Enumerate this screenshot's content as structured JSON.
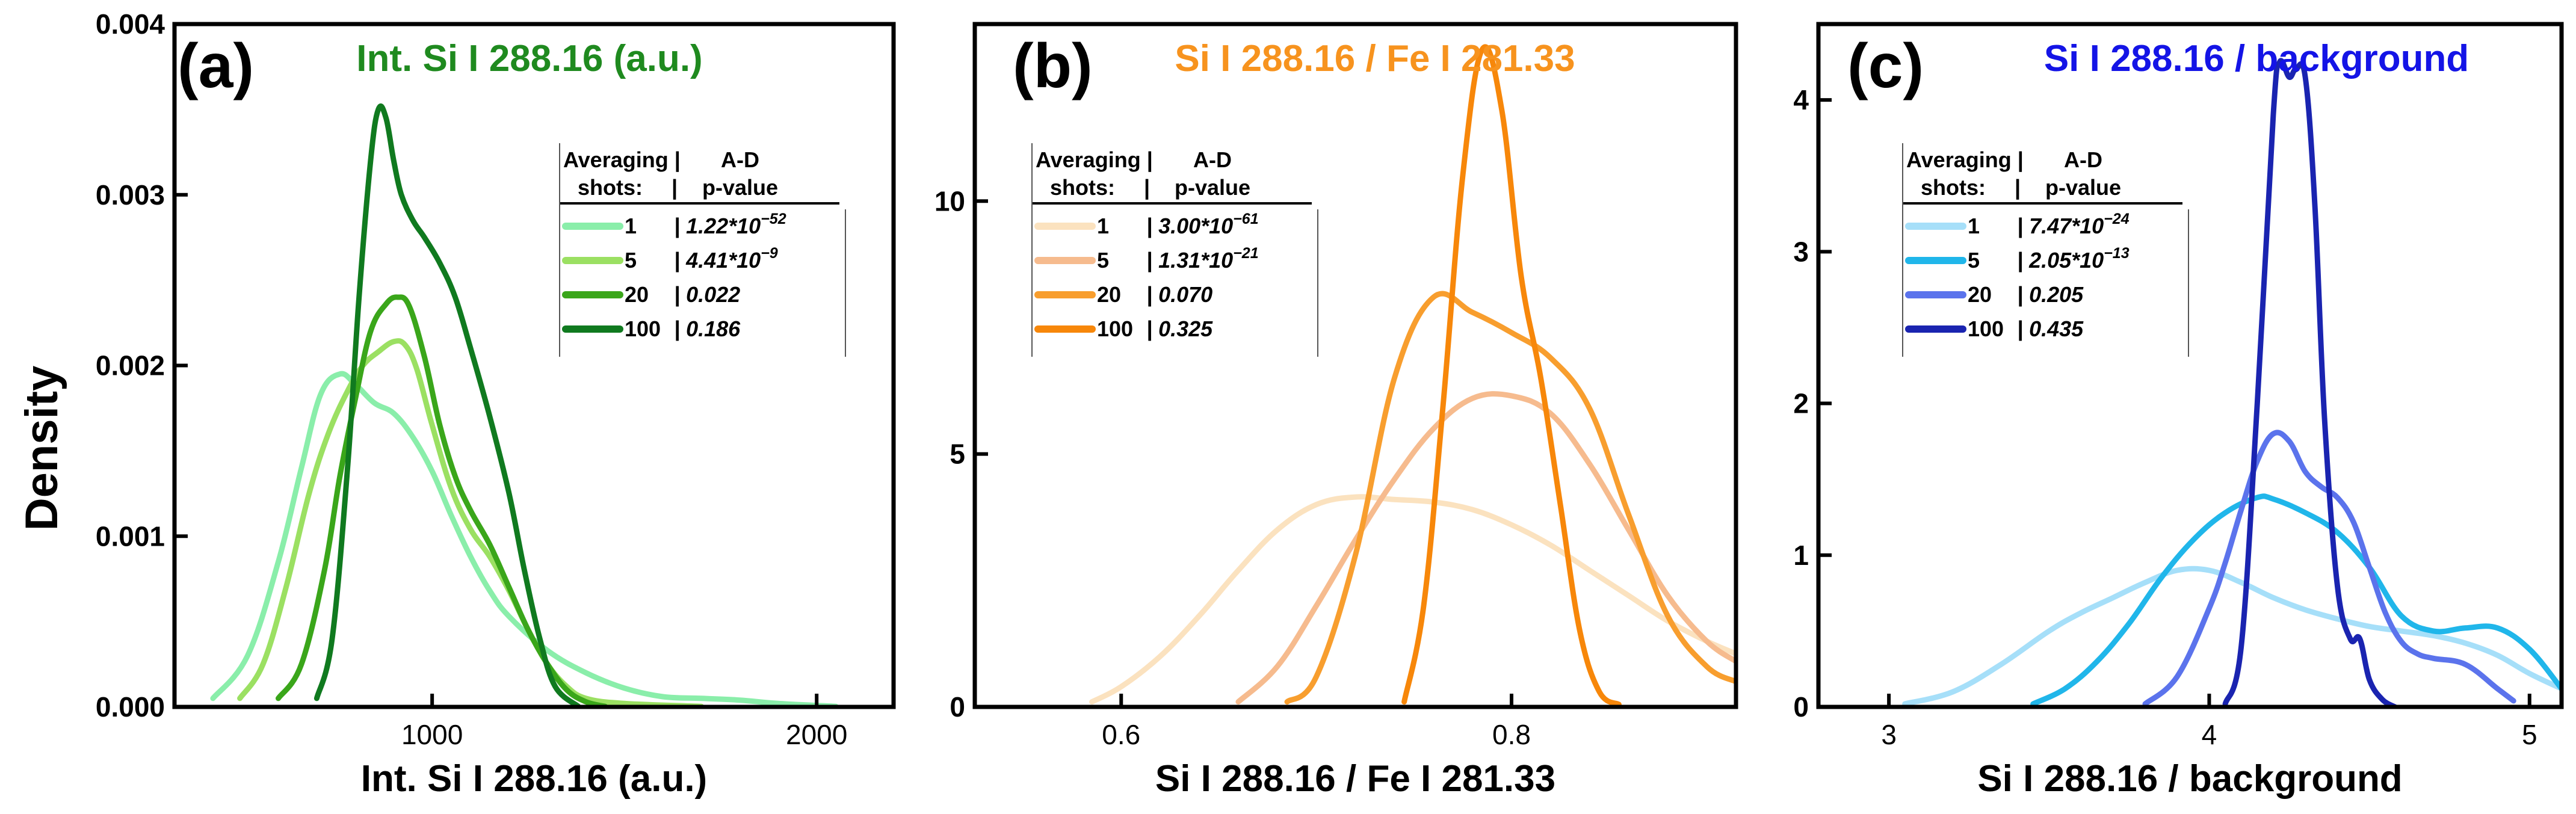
{
  "figure": {
    "ylabel": "Density"
  },
  "legend_header": {
    "line1_left": "Averaging",
    "line1_right": "A-D",
    "line2_left": "shots:",
    "line2_right": "p-value",
    "sep": "|"
  },
  "colors": {
    "a": [
      "#8aeeaa",
      "#9be062",
      "#3aa61a",
      "#107a1f"
    ],
    "b": [
      "#fbe2bf",
      "#f6bb8e",
      "#f89e2e",
      "#f7870a"
    ],
    "c": [
      "#a6dff9",
      "#20b6ea",
      "#5b73ec",
      "#1a24b0"
    ],
    "title_a": "#1f8a1f",
    "title_b": "#f7931e",
    "title_c": "#1414e6"
  },
  "chart_data": [
    {
      "type": "line",
      "panel": "(a)",
      "title": "Int. Si I 288.16 (a.u.)",
      "xlabel": "Int. Si I 288.16 (a.u.)",
      "ylabel": "Density",
      "xlim": [
        330,
        2200
      ],
      "ylim": [
        0,
        0.004
      ],
      "xticks": [
        1000,
        2000
      ],
      "yticks": [
        0.0,
        0.001,
        0.002,
        0.003,
        0.004
      ],
      "ytick_labels": [
        "0.000",
        "0.001",
        "0.002",
        "0.003",
        "0.004"
      ],
      "legend": [
        {
          "shots": "1",
          "pvalue_base": "1.22*10",
          "pvalue_exp": "−52"
        },
        {
          "shots": "5",
          "pvalue_base": "4.41*10",
          "pvalue_exp": "−9"
        },
        {
          "shots": "20",
          "pvalue_base": "0.022",
          "pvalue_exp": ""
        },
        {
          "shots": "100",
          "pvalue_base": "0.186",
          "pvalue_exp": ""
        }
      ],
      "series": [
        {
          "name": "1",
          "x": [
            430,
            520,
            600,
            660,
            710,
            760,
            800,
            850,
            900,
            950,
            1000,
            1050,
            1100,
            1150,
            1200,
            1300,
            1400,
            1500,
            1600,
            1700,
            1800,
            1900,
            2050
          ],
          "y": [
            5e-05,
            0.0003,
            0.00085,
            0.0014,
            0.00183,
            0.00195,
            0.00189,
            0.00178,
            0.00172,
            0.00158,
            0.00138,
            0.00112,
            0.00088,
            0.00068,
            0.00053,
            0.00033,
            0.0002,
            0.00011,
            6e-05,
            5e-05,
            4e-05,
            2e-05,
            3e-06
          ]
        },
        {
          "name": "5",
          "x": [
            500,
            560,
            620,
            680,
            730,
            780,
            820,
            860,
            900,
            930,
            960,
            1000,
            1050,
            1100,
            1150,
            1200,
            1250,
            1300,
            1350,
            1400,
            1500,
            1700
          ],
          "y": [
            5e-05,
            0.00025,
            0.0007,
            0.00125,
            0.0016,
            0.00185,
            0.002,
            0.00208,
            0.00214,
            0.00212,
            0.00198,
            0.00165,
            0.00128,
            0.00104,
            0.00088,
            0.00068,
            0.00045,
            0.00025,
            0.00012,
            5e-05,
            2e-05,
            3e-06
          ]
        },
        {
          "name": "20",
          "x": [
            600,
            660,
            720,
            760,
            800,
            840,
            880,
            910,
            940,
            980,
            1020,
            1060,
            1100,
            1150,
            1200,
            1250,
            1300,
            1350,
            1400,
            1450
          ],
          "y": [
            5e-05,
            0.00025,
            0.0008,
            0.00135,
            0.0018,
            0.0022,
            0.00236,
            0.0024,
            0.00235,
            0.00205,
            0.00165,
            0.00135,
            0.00115,
            0.00095,
            0.0007,
            0.00045,
            0.00025,
            0.0001,
            3e-05,
            3e-06
          ]
        },
        {
          "name": "100",
          "x": [
            700,
            740,
            780,
            810,
            840,
            860,
            880,
            900,
            920,
            950,
            980,
            1020,
            1060,
            1100,
            1150,
            1200,
            1240,
            1280,
            1320,
            1380
          ],
          "y": [
            5e-05,
            0.0004,
            0.0014,
            0.0024,
            0.0032,
            0.0035,
            0.00345,
            0.0032,
            0.003,
            0.00285,
            0.00275,
            0.0026,
            0.0024,
            0.0021,
            0.0017,
            0.00125,
            0.0008,
            0.0004,
            0.00012,
            3e-06
          ]
        }
      ]
    },
    {
      "type": "line",
      "panel": "(b)",
      "title": "Si I 288.16 / Fe I 281.33",
      "xlabel": "Si I 288.16 / Fe I 281.33",
      "ylabel": "",
      "xlim": [
        0.525,
        0.915
      ],
      "ylim": [
        0,
        13.5
      ],
      "xticks": [
        0.6,
        0.8
      ],
      "yticks": [
        0,
        5,
        10
      ],
      "ytick_labels": [
        "0",
        "5",
        "10"
      ],
      "legend": [
        {
          "shots": "1",
          "pvalue_base": "3.00*10",
          "pvalue_exp": "−61"
        },
        {
          "shots": "5",
          "pvalue_base": "1.31*10",
          "pvalue_exp": "−21"
        },
        {
          "shots": "20",
          "pvalue_base": "0.070",
          "pvalue_exp": ""
        },
        {
          "shots": "100",
          "pvalue_base": "0.325",
          "pvalue_exp": ""
        }
      ],
      "series": [
        {
          "name": "1",
          "x": [
            0.585,
            0.6,
            0.62,
            0.64,
            0.66,
            0.68,
            0.7,
            0.72,
            0.74,
            0.76,
            0.78,
            0.8,
            0.82,
            0.84,
            0.86,
            0.88,
            0.9,
            0.915
          ],
          "y": [
            0.1,
            0.4,
            1.0,
            1.8,
            2.7,
            3.5,
            4.0,
            4.15,
            4.1,
            4.05,
            3.9,
            3.6,
            3.2,
            2.7,
            2.2,
            1.7,
            1.3,
            1.05
          ]
        },
        {
          "name": "5",
          "x": [
            0.66,
            0.68,
            0.7,
            0.72,
            0.74,
            0.76,
            0.78,
            0.8,
            0.82,
            0.84,
            0.86,
            0.88,
            0.9,
            0.915
          ],
          "y": [
            0.1,
            0.8,
            2.0,
            3.3,
            4.5,
            5.5,
            6.1,
            6.15,
            5.8,
            4.8,
            3.5,
            2.2,
            1.3,
            0.9
          ]
        },
        {
          "name": "20",
          "x": [
            0.685,
            0.7,
            0.72,
            0.74,
            0.76,
            0.78,
            0.8,
            0.82,
            0.84,
            0.86,
            0.88,
            0.9,
            0.915
          ],
          "y": [
            0.1,
            0.6,
            3.0,
            6.5,
            8.1,
            7.8,
            7.4,
            6.9,
            5.9,
            3.8,
            1.8,
            0.8,
            0.5
          ]
        },
        {
          "name": "100",
          "x": [
            0.745,
            0.755,
            0.765,
            0.775,
            0.785,
            0.795,
            0.805,
            0.815,
            0.825,
            0.835,
            0.845,
            0.855
          ],
          "y": [
            0.1,
            2.0,
            6.0,
            10.5,
            13.0,
            11.8,
            8.5,
            6.5,
            4.0,
            1.5,
            0.3,
            0.05
          ]
        }
      ]
    },
    {
      "type": "line",
      "panel": "(c)",
      "title": "Si I 288.16 / background",
      "xlabel": "Si I 288.16 / background",
      "ylabel": "",
      "xlim": [
        2.78,
        5.1
      ],
      "ylim": [
        0,
        4.5
      ],
      "xticks": [
        3,
        4,
        5
      ],
      "yticks": [
        0,
        1,
        2,
        3,
        4
      ],
      "ytick_labels": [
        "0",
        "1",
        "2",
        "3",
        "4"
      ],
      "legend": [
        {
          "shots": "1",
          "pvalue_base": "7.47*10",
          "pvalue_exp": "−24"
        },
        {
          "shots": "5",
          "pvalue_base": "2.05*10",
          "pvalue_exp": "−13"
        },
        {
          "shots": "20",
          "pvalue_base": "0.205",
          "pvalue_exp": ""
        },
        {
          "shots": "100",
          "pvalue_base": "0.435",
          "pvalue_exp": ""
        }
      ],
      "series": [
        {
          "name": "1",
          "x": [
            3.05,
            3.2,
            3.35,
            3.5,
            3.6,
            3.7,
            3.8,
            3.9,
            4.0,
            4.1,
            4.2,
            4.3,
            4.4,
            4.5,
            4.6,
            4.7,
            4.8,
            4.9,
            5.0,
            5.1
          ],
          "y": [
            0.02,
            0.1,
            0.28,
            0.5,
            0.62,
            0.72,
            0.82,
            0.9,
            0.9,
            0.82,
            0.72,
            0.64,
            0.58,
            0.53,
            0.5,
            0.47,
            0.42,
            0.34,
            0.22,
            0.12
          ]
        },
        {
          "name": "5",
          "x": [
            3.45,
            3.55,
            3.65,
            3.75,
            3.85,
            3.95,
            4.05,
            4.15,
            4.2,
            4.3,
            4.4,
            4.5,
            4.6,
            4.7,
            4.8,
            4.9,
            5.0,
            5.1
          ],
          "y": [
            0.02,
            0.12,
            0.3,
            0.55,
            0.85,
            1.1,
            1.28,
            1.38,
            1.37,
            1.28,
            1.15,
            0.92,
            0.6,
            0.5,
            0.52,
            0.52,
            0.38,
            0.12
          ]
        },
        {
          "name": "20",
          "x": [
            3.8,
            3.9,
            4.0,
            4.05,
            4.1,
            4.15,
            4.2,
            4.25,
            4.3,
            4.35,
            4.4,
            4.45,
            4.5,
            4.55,
            4.6,
            4.65,
            4.7,
            4.8,
            4.9,
            4.95
          ],
          "y": [
            0.02,
            0.2,
            0.65,
            0.95,
            1.3,
            1.62,
            1.8,
            1.75,
            1.55,
            1.45,
            1.38,
            1.22,
            0.92,
            0.62,
            0.43,
            0.35,
            0.32,
            0.28,
            0.12,
            0.04
          ]
        },
        {
          "name": "100",
          "x": [
            4.05,
            4.1,
            4.15,
            4.2,
            4.22,
            4.25,
            4.27,
            4.3,
            4.33,
            4.36,
            4.4,
            4.44,
            4.47,
            4.5,
            4.54,
            4.58
          ],
          "y": [
            0.02,
            0.4,
            2.0,
            3.9,
            4.25,
            4.15,
            4.2,
            4.15,
            3.3,
            1.9,
            0.8,
            0.45,
            0.45,
            0.18,
            0.05,
            0.0
          ]
        }
      ]
    }
  ]
}
